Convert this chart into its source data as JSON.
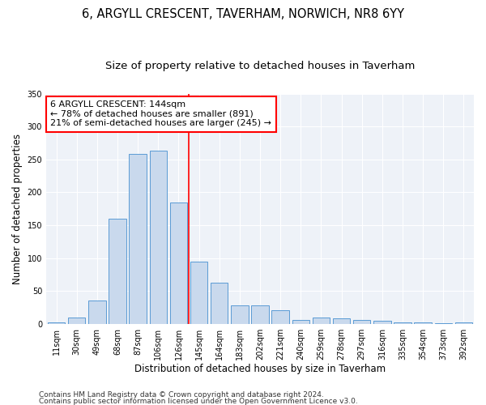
{
  "title_line1": "6, ARGYLL CRESCENT, TAVERHAM, NORWICH, NR8 6YY",
  "title_line2": "Size of property relative to detached houses in Taverham",
  "xlabel": "Distribution of detached houses by size in Taverham",
  "ylabel": "Number of detached properties",
  "bar_color": "#c9d9ed",
  "bar_edge_color": "#5b9bd5",
  "bg_color": "#eef2f8",
  "categories": [
    "11sqm",
    "30sqm",
    "49sqm",
    "68sqm",
    "87sqm",
    "106sqm",
    "126sqm",
    "145sqm",
    "164sqm",
    "183sqm",
    "202sqm",
    "221sqm",
    "240sqm",
    "259sqm",
    "278sqm",
    "297sqm",
    "316sqm",
    "335sqm",
    "354sqm",
    "373sqm",
    "392sqm"
  ],
  "values": [
    2,
    10,
    35,
    160,
    258,
    263,
    185,
    95,
    62,
    28,
    28,
    20,
    6,
    10,
    8,
    6,
    4,
    2,
    2,
    1,
    2
  ],
  "property_label": "6 ARGYLL CRESCENT: 144sqm",
  "annotation_line1": "← 78% of detached houses are smaller (891)",
  "annotation_line2": "21% of semi-detached houses are larger (245) →",
  "ylim": [
    0,
    350
  ],
  "yticks": [
    0,
    50,
    100,
    150,
    200,
    250,
    300,
    350
  ],
  "footer1": "Contains HM Land Registry data © Crown copyright and database right 2024.",
  "footer2": "Contains public sector information licensed under the Open Government Licence v3.0.",
  "title_fontsize": 10.5,
  "subtitle_fontsize": 9.5,
  "axis_label_fontsize": 8.5,
  "tick_fontsize": 7,
  "annotation_fontsize": 8,
  "footer_fontsize": 6.5
}
